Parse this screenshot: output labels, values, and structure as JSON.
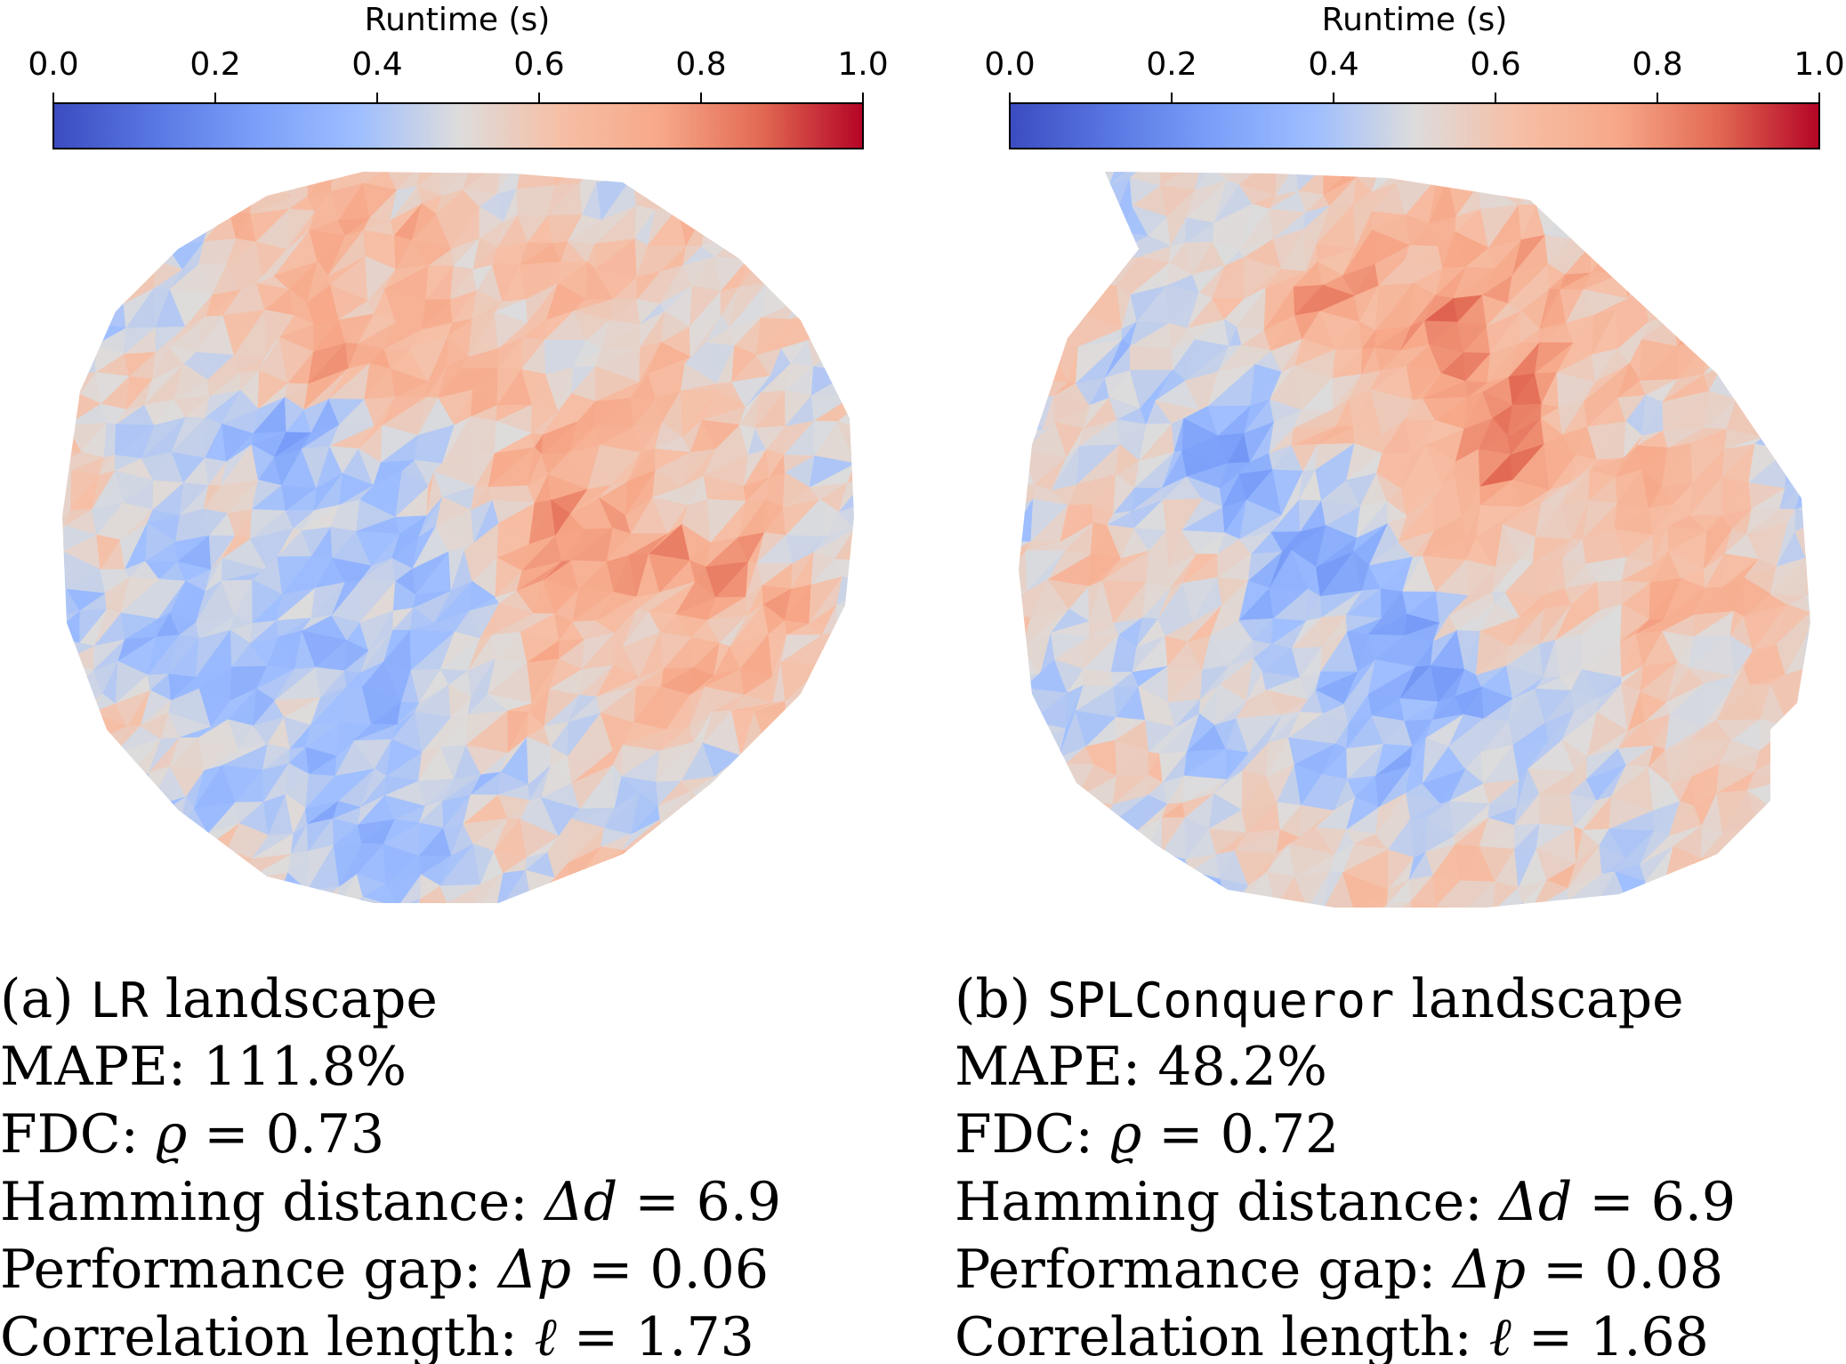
{
  "chart_data": [
    {
      "type": "heatmap",
      "panel": "a",
      "colorbar": {
        "title": "Runtime (s)",
        "range": [
          0.0,
          1.0
        ],
        "ticks": [
          "0.0",
          "0.2",
          "0.4",
          "0.6",
          "0.8",
          "1.0"
        ],
        "colormap": "coolwarm",
        "placement": "top"
      },
      "caption": {
        "tag": "(a)",
        "model": "LR",
        "suffix": "landscape",
        "lines": [
          {
            "label": "MAPE:",
            "symbol": "",
            "value": "111.8%"
          },
          {
            "label": "FDC:",
            "symbol": "ϱ",
            "value": "0.73"
          },
          {
            "label": "Hamming distance:",
            "symbol": "Δd",
            "value": "6.9"
          },
          {
            "label": "Performance gap:",
            "symbol": "Δp",
            "value": "0.06"
          },
          {
            "label": "Correlation length:",
            "symbol": "ℓ",
            "value": "1.73"
          }
        ]
      },
      "metrics": {
        "mape_percent": 111.8,
        "fdc_rho": 0.73,
        "hamming_distance": 6.9,
        "performance_gap": 0.06,
        "correlation_length": 1.73
      }
    },
    {
      "type": "heatmap",
      "panel": "b",
      "colorbar": {
        "title": "Runtime (s)",
        "range": [
          0.0,
          1.0
        ],
        "ticks": [
          "0.0",
          "0.2",
          "0.4",
          "0.6",
          "0.8",
          "1.0"
        ],
        "colormap": "coolwarm",
        "placement": "top"
      },
      "caption": {
        "tag": "(b)",
        "model": "SPLConqueror",
        "suffix": "landscape",
        "lines": [
          {
            "label": "MAPE:",
            "symbol": "",
            "value": "48.2%"
          },
          {
            "label": "FDC:",
            "symbol": "ϱ",
            "value": "0.72"
          },
          {
            "label": "Hamming distance:",
            "symbol": "Δd",
            "value": "6.9"
          },
          {
            "label": "Performance gap:",
            "symbol": "Δp",
            "value": "0.08"
          },
          {
            "label": "Correlation length:",
            "symbol": "ℓ",
            "value": "1.68"
          }
        ]
      },
      "metrics": {
        "mape_percent": 48.2,
        "fdc_rho": 0.72,
        "hamming_distance": 6.9,
        "performance_gap": 0.08,
        "correlation_length": 1.68
      }
    }
  ],
  "colors": {
    "coolwarm_low": "#3b4cc0",
    "coolwarm_mid": "#dddddd",
    "coolwarm_high": "#b40426"
  }
}
